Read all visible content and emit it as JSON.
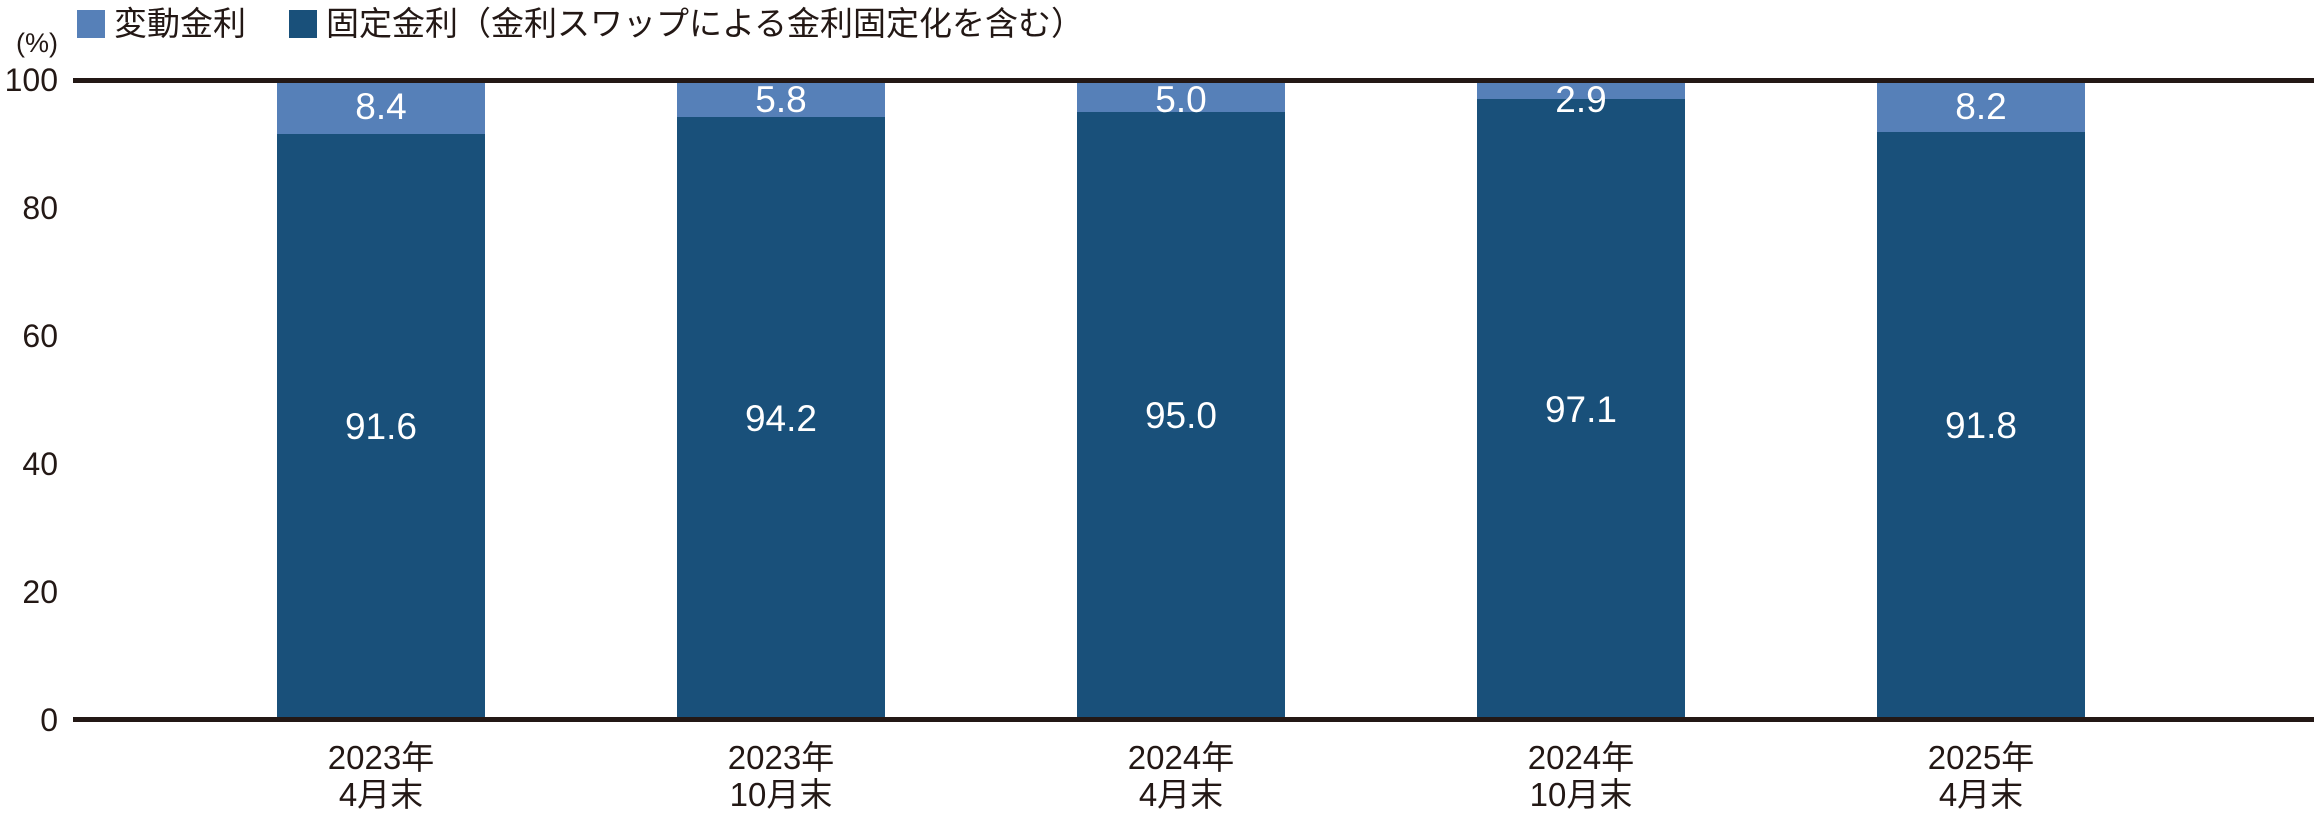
{
  "colors": {
    "variable_series": "#5680B8",
    "fixed_series": "#19507A",
    "axis": "#231815",
    "text": "#231815",
    "value_label": "#FFFFFF",
    "background": "#FFFFFF"
  },
  "legend": {
    "items": [
      {
        "label": "変動金利",
        "series": "variable"
      },
      {
        "label": "固定金利（金利スワップによる金利固定化を含む）",
        "series": "fixed"
      }
    ]
  },
  "y_axis": {
    "unit_label": "(%)",
    "ticks": [
      100,
      80,
      60,
      40,
      20,
      0
    ],
    "min": 0,
    "max": 100
  },
  "chart_data": {
    "type": "bar",
    "stacked": true,
    "title": "",
    "xlabel": "",
    "ylabel": "(%)",
    "ylim": [
      0,
      100
    ],
    "grid": false,
    "legend_position": "top-left",
    "categories": [
      "2023年\n4月末",
      "2023年\n10月末",
      "2024年\n4月末",
      "2024年\n10月末",
      "2025年\n4月末"
    ],
    "series": [
      {
        "name": "変動金利",
        "color": "#5680B8",
        "values": [
          8.4,
          5.8,
          5.0,
          2.9,
          8.2
        ]
      },
      {
        "name": "固定金利（金利スワップによる金利固定化を含む）",
        "color": "#19507A",
        "values": [
          91.6,
          94.2,
          95.0,
          97.1,
          91.8
        ]
      }
    ],
    "value_labels": true
  }
}
